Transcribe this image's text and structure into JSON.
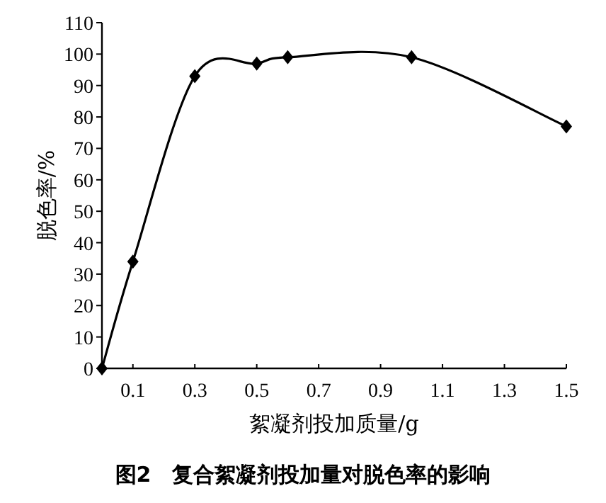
{
  "chart_data": {
    "type": "line",
    "title": "图2　复合絮凝剂投加量对脱色率的影响",
    "xlabel": "絮凝剂投加质量/g",
    "ylabel": "脱色率/%",
    "x": [
      0,
      0.1,
      0.3,
      0.5,
      0.6,
      1.0,
      1.5
    ],
    "values": [
      0,
      34,
      93,
      97,
      99,
      99,
      77
    ],
    "color": "#000000",
    "marker": "diamond",
    "line_style": "solid",
    "grid": false,
    "xlim": [
      0,
      1.5
    ],
    "xticks": [
      0.1,
      0.3,
      0.5,
      0.7,
      0.9,
      1.1,
      1.3,
      1.5
    ],
    "ylim": [
      0,
      110
    ],
    "yticks": [
      0,
      10,
      20,
      30,
      40,
      50,
      60,
      70,
      80,
      90,
      100,
      110
    ]
  }
}
